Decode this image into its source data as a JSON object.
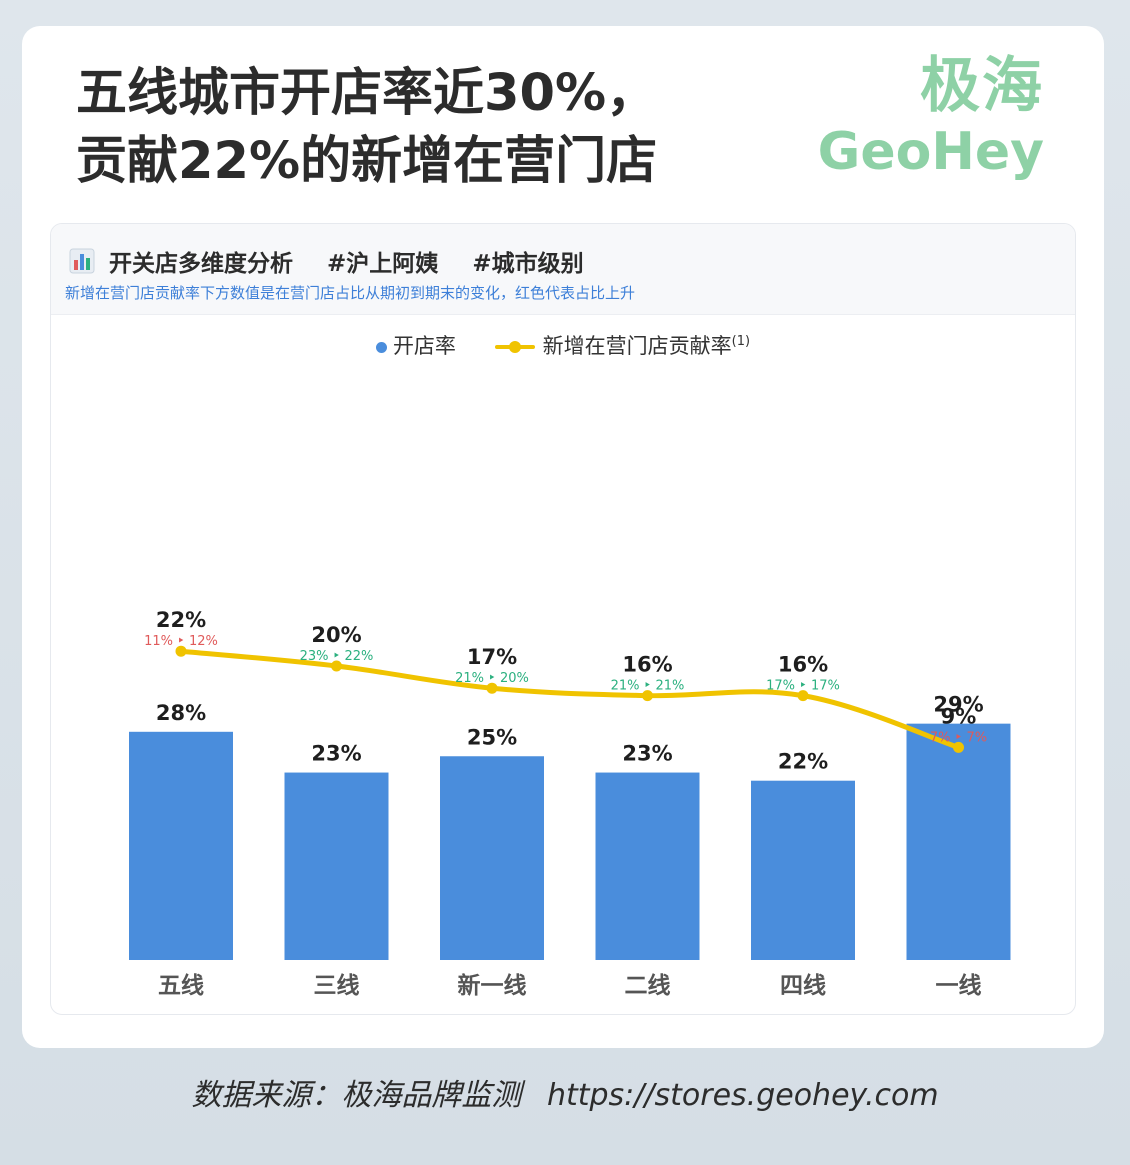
{
  "headline": {
    "line1": "五线城市开店率近30%，",
    "line2": "贡献22%的新增在营门店"
  },
  "brand": {
    "cn": "极海",
    "en": "GeoHey"
  },
  "panel": {
    "icon": "bar-chart-icon",
    "title": "开关店多维度分析",
    "tag1": "#沪上阿姨",
    "tag2": "#城市级别",
    "subtitle": "新增在营门店贡献率下方数值是在营门店占比从期初到期末的变化，红色代表占比上升"
  },
  "colors": {
    "bar": "#4a8ddc",
    "line": "#f0c300",
    "up": "#e05a5a",
    "flat": "#2bb07f"
  },
  "chart_data": {
    "type": "bar",
    "categories": [
      "五线",
      "三线",
      "新一线",
      "二线",
      "四线",
      "一线"
    ],
    "legend": {
      "bar_label": "开店率",
      "line_label": "新增在营门店贡献率",
      "line_note": "(1)"
    },
    "series": [
      {
        "name": "开店率",
        "type": "bar",
        "values": [
          28,
          23,
          25,
          23,
          22,
          29
        ],
        "labels": [
          "28%",
          "23%",
          "25%",
          "23%",
          "22%",
          "29%"
        ]
      },
      {
        "name": "新增在营门店贡献率",
        "type": "line",
        "values": [
          22,
          20,
          17,
          16,
          16,
          9
        ],
        "labels": [
          "22%",
          "20%",
          "17%",
          "16%",
          "16%",
          "9%"
        ],
        "share_start": [
          "11%",
          "23%",
          "21%",
          "21%",
          "17%",
          "7%"
        ],
        "share_end": [
          "12%",
          "22%",
          "20%",
          "21%",
          "17%",
          "7%"
        ],
        "share_up": [
          true,
          false,
          false,
          false,
          false,
          true
        ]
      }
    ],
    "grid": false
  },
  "source": {
    "label": "数据来源：极海品牌监测",
    "url": "https://stores.geohey.com"
  }
}
